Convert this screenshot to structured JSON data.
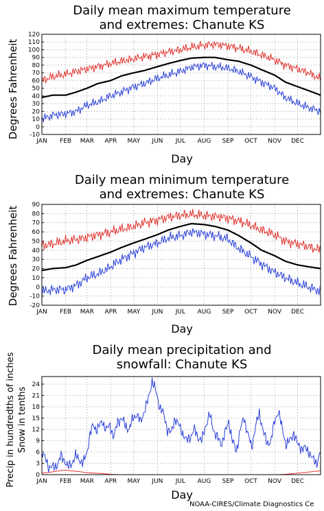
{
  "months": [
    "JAN",
    "FEB",
    "MAR",
    "APR",
    "MAY",
    "JUN",
    "JUL",
    "AUG",
    "SEP",
    "OCT",
    "NOV",
    "DEC"
  ],
  "credit": "NOAA-CIRES/Climate Diagnostics Ce",
  "colors": {
    "mean": "#000000",
    "high": "#e0302a",
    "low": "#2a40d8",
    "grid": "#888888"
  },
  "chart_data": [
    {
      "type": "line",
      "title_line1": "Daily mean maximum temperature",
      "title_line2": "and extremes: Chanute KS",
      "xlabel": "Day",
      "ylabel": "Degrees Fahrenheit",
      "ylim": [
        -10,
        120
      ],
      "yticks": [
        -10,
        0,
        10,
        20,
        30,
        40,
        50,
        60,
        70,
        80,
        90,
        100,
        110,
        120
      ],
      "grid": true,
      "x_knots_day": [
        1,
        15,
        32,
        46,
        60,
        74,
        91,
        105,
        121,
        135,
        152,
        166,
        182,
        196,
        213,
        227,
        244,
        258,
        274,
        288,
        305,
        319,
        335,
        349,
        365
      ],
      "series": [
        {
          "role": "high",
          "values": [
            60,
            65,
            68,
            72,
            75,
            78,
            82,
            85,
            88,
            91,
            94,
            97,
            100,
            103,
            106,
            107,
            105,
            102,
            98,
            93,
            87,
            80,
            75,
            70,
            62
          ]
        },
        {
          "role": "mean",
          "values": [
            38,
            41,
            41,
            45,
            50,
            56,
            60,
            66,
            70,
            73,
            78,
            82,
            86,
            89,
            90,
            90,
            87,
            85,
            80,
            74,
            67,
            58,
            52,
            47,
            41
          ]
        },
        {
          "role": "low",
          "values": [
            10,
            15,
            17,
            20,
            28,
            32,
            40,
            45,
            52,
            56,
            63,
            67,
            72,
            77,
            80,
            78,
            76,
            72,
            65,
            58,
            50,
            38,
            30,
            25,
            20
          ]
        }
      ]
    },
    {
      "type": "line",
      "title_line1": "Daily mean minimum temperature",
      "title_line2": "and extremes: Chanute KS",
      "xlabel": "Day",
      "ylabel": "Degrees Fahrenheit",
      "ylim": [
        -20,
        90
      ],
      "yticks": [
        -20,
        -10,
        0,
        10,
        20,
        30,
        40,
        50,
        60,
        70,
        80,
        90
      ],
      "grid": true,
      "x_knots_day": [
        1,
        15,
        32,
        46,
        60,
        74,
        91,
        105,
        121,
        135,
        152,
        166,
        182,
        196,
        213,
        227,
        244,
        258,
        274,
        288,
        305,
        319,
        335,
        349,
        365
      ],
      "series": [
        {
          "role": "high",
          "values": [
            45,
            47,
            50,
            52,
            54,
            57,
            60,
            63,
            66,
            70,
            73,
            76,
            78,
            79,
            78,
            77,
            75,
            72,
            67,
            62,
            57,
            50,
            47,
            44,
            40
          ]
        },
        {
          "role": "mean",
          "values": [
            18,
            20,
            21,
            24,
            29,
            33,
            38,
            43,
            48,
            52,
            57,
            62,
            66,
            69,
            68,
            66,
            62,
            56,
            48,
            40,
            34,
            28,
            24,
            22,
            20
          ]
        },
        {
          "role": "low",
          "values": [
            -5,
            -3,
            -3,
            2,
            10,
            14,
            22,
            30,
            37,
            43,
            48,
            53,
            56,
            60,
            58,
            56,
            52,
            42,
            33,
            25,
            16,
            10,
            4,
            0,
            -5
          ]
        }
      ]
    },
    {
      "type": "line",
      "title_line1": "Daily mean precipitation and",
      "title_line2": "snowfall: Chanute KS",
      "xlabel": "Day",
      "ylabel_line1": "Precip in hundredths of inches",
      "ylabel_line2": "Snow in tenths",
      "ylim": [
        0,
        26
      ],
      "yticks": [
        0,
        3,
        6,
        9,
        12,
        15,
        18,
        21,
        24
      ],
      "grid": true,
      "series": [
        {
          "role": "precip",
          "x": [
            1,
            6,
            10,
            14,
            18,
            22,
            26,
            30,
            35,
            40,
            45,
            50,
            55,
            60,
            64,
            68,
            72,
            76,
            80,
            85,
            90,
            95,
            100,
            105,
            110,
            115,
            120,
            125,
            130,
            135,
            140,
            145,
            150,
            155,
            160,
            165,
            170,
            175,
            180,
            185,
            190,
            195,
            200,
            205,
            210,
            215,
            220,
            225,
            230,
            235,
            240,
            245,
            250,
            255,
            260,
            265,
            270,
            275,
            280,
            285,
            290,
            295,
            300,
            305,
            310,
            315,
            320,
            325,
            330,
            335,
            340,
            345,
            350,
            355,
            360,
            365
          ],
          "values": [
            6,
            4,
            2,
            2,
            2,
            3,
            5,
            4,
            2,
            3,
            5,
            4,
            3,
            6,
            11,
            13,
            12,
            13,
            14,
            12,
            13,
            10,
            14,
            15,
            13,
            12,
            15,
            16,
            14,
            17,
            20,
            25,
            22,
            18,
            16,
            12,
            11,
            15,
            13,
            11,
            9,
            10,
            12,
            10,
            9,
            13,
            16,
            12,
            10,
            8,
            11,
            14,
            9,
            6,
            12,
            15,
            11,
            7,
            13,
            16,
            12,
            8,
            9,
            14,
            17,
            12,
            8,
            9,
            11,
            8,
            7,
            7,
            6,
            4,
            3,
            6
          ]
        },
        {
          "role": "snow",
          "x": [
            1,
            10,
            20,
            30,
            40,
            50,
            60,
            70,
            80,
            90,
            100,
            310,
            320,
            330,
            340,
            350,
            358,
            365
          ],
          "values": [
            0.4,
            0.6,
            0.9,
            1.2,
            1.0,
            0.8,
            0.5,
            0.4,
            0.3,
            0.1,
            0,
            0,
            0.1,
            0.3,
            0.5,
            0.7,
            0.9,
            1.0
          ]
        }
      ]
    }
  ]
}
